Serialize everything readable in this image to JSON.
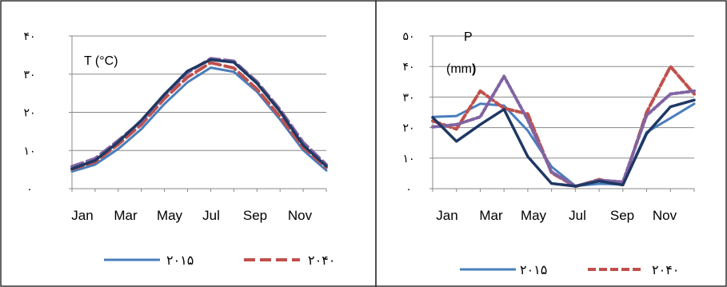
{
  "chart_data": [
    {
      "type": "line",
      "annotation": "T (°C)",
      "y_ticks": [
        "۰",
        "۱۰",
        "۲۰",
        "۳۰",
        "۴۰"
      ],
      "ylim": [
        0,
        40
      ],
      "x_ticks": [
        "Jan",
        "Mar",
        "May",
        "Jul",
        "Sep",
        "Nov"
      ],
      "categories": [
        "Jan",
        "Feb",
        "Mar",
        "Apr",
        "May",
        "Jun",
        "Jul",
        "Aug",
        "Sep",
        "Oct",
        "Nov",
        "Dec"
      ],
      "grid": "horizontal",
      "legend_position": "bottom",
      "series": [
        {
          "name": "۲۰۱۵",
          "color": "#4a7ebb",
          "style": "solid",
          "values": [
            4.5,
            6.3,
            10.4,
            15.6,
            22.2,
            27.9,
            31.7,
            30.6,
            25.4,
            18.1,
            10.1,
            4.8
          ]
        },
        {
          "name": "۲۰۴۰",
          "color": "#c0504d",
          "style": "dashed",
          "values": [
            5.1,
            7.0,
            11.6,
            16.8,
            23.6,
            29.2,
            33.0,
            31.6,
            26.1,
            18.8,
            10.8,
            5.6
          ]
        },
        {
          "name": "",
          "color": "#8064a2",
          "style": "dashed",
          "values": [
            5.8,
            7.9,
            12.6,
            17.6,
            24.6,
            30.4,
            34.1,
            33.4,
            28.0,
            20.7,
            12.1,
            6.3
          ]
        },
        {
          "name": "",
          "color": "#1f3864",
          "style": "solid",
          "values": [
            5.2,
            7.4,
            12.2,
            17.9,
            24.7,
            30.8,
            33.8,
            33.1,
            27.6,
            20.2,
            11.4,
            5.9
          ]
        }
      ]
    },
    {
      "type": "line",
      "annotation_line1": "P",
      "annotation_line2": "(mm",
      "annotation_line2_bold": ")",
      "y_ticks": [
        "۰",
        "۱۰",
        "۲۰",
        "۳۰",
        "۴۰",
        "۵۰"
      ],
      "ylim": [
        0,
        50
      ],
      "x_ticks": [
        "Jan",
        "Mar",
        "May",
        "Jul",
        "Sep",
        "Nov"
      ],
      "categories": [
        "Jan",
        "Feb",
        "Mar",
        "Apr",
        "May",
        "Jun",
        "Jul",
        "Aug",
        "Sep",
        "Oct",
        "Nov",
        "Dec"
      ],
      "grid": "horizontal",
      "legend_position": "bottom",
      "series": [
        {
          "name": "۲۰۱۵",
          "color": "#4a7ebb",
          "style": "solid",
          "values": [
            23.5,
            23.8,
            27.8,
            27.2,
            19.0,
            7.2,
            0.9,
            1.6,
            1.4,
            18.5,
            23.1,
            27.8
          ]
        },
        {
          "name": "۲۰۴۰",
          "color": "#c0504d",
          "style": "dashed",
          "values": [
            22.2,
            19.5,
            32.0,
            26.3,
            24.5,
            5.2,
            0.7,
            3.0,
            1.5,
            25.0,
            40.0,
            31.0
          ]
        },
        {
          "name": "",
          "color": "#8064a2",
          "style": "dotted",
          "values": [
            20.2,
            21.0,
            23.5,
            36.8,
            22.5,
            5.5,
            0.8,
            2.8,
            2.2,
            24.0,
            31.0,
            32.0
          ]
        },
        {
          "name": "",
          "color": "#1f3864",
          "style": "solid",
          "values": [
            23.3,
            15.5,
            21.0,
            26.0,
            10.5,
            1.7,
            0.8,
            2.5,
            1.2,
            18.0,
            26.8,
            29.0
          ]
        }
      ]
    }
  ]
}
